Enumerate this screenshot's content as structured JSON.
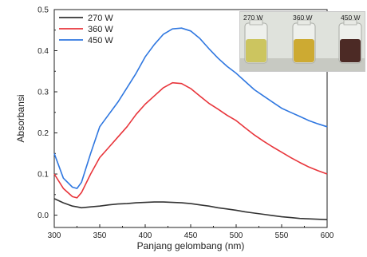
{
  "chart_data": {
    "type": "line",
    "title": "",
    "xlabel": "Panjang gelombang (nm)",
    "ylabel": "Absorbansi",
    "xlim": [
      300,
      600
    ],
    "ylim": [
      -0.03,
      0.5
    ],
    "x_ticks": [
      300,
      350,
      400,
      450,
      500,
      550,
      600
    ],
    "x_tick_labels": [
      "300",
      "350",
      "400",
      "450",
      "500",
      "550",
      "600"
    ],
    "y_ticks": [
      0.0,
      0.1,
      0.2,
      0.3,
      0.4,
      0.5
    ],
    "y_tick_labels": [
      "0.0",
      "0.1",
      "0.2",
      "0.3",
      "0.4",
      "0.5"
    ],
    "legend_position": "top-left",
    "grid": false,
    "x": [
      300,
      310,
      320,
      325,
      330,
      340,
      350,
      360,
      370,
      380,
      390,
      400,
      410,
      420,
      430,
      440,
      450,
      460,
      470,
      480,
      490,
      500,
      510,
      520,
      530,
      540,
      550,
      560,
      570,
      580,
      590,
      600
    ],
    "series": [
      {
        "name": "270 W",
        "color": "#333333",
        "values": [
          0.04,
          0.03,
          0.022,
          0.02,
          0.018,
          0.02,
          0.022,
          0.025,
          0.027,
          0.028,
          0.03,
          0.031,
          0.032,
          0.032,
          0.031,
          0.03,
          0.028,
          0.025,
          0.022,
          0.018,
          0.015,
          0.012,
          0.008,
          0.005,
          0.002,
          -0.001,
          -0.004,
          -0.006,
          -0.008,
          -0.009,
          -0.01,
          -0.011
        ]
      },
      {
        "name": "360 W",
        "color": "#e8353b",
        "values": [
          0.1,
          0.065,
          0.045,
          0.042,
          0.055,
          0.1,
          0.14,
          0.165,
          0.19,
          0.215,
          0.245,
          0.27,
          0.29,
          0.31,
          0.322,
          0.32,
          0.308,
          0.29,
          0.272,
          0.258,
          0.243,
          0.23,
          0.212,
          0.195,
          0.18,
          0.166,
          0.153,
          0.14,
          0.128,
          0.117,
          0.108,
          0.1
        ]
      },
      {
        "name": "450 W",
        "color": "#2f77e0",
        "values": [
          0.15,
          0.09,
          0.068,
          0.065,
          0.08,
          0.15,
          0.215,
          0.245,
          0.275,
          0.31,
          0.345,
          0.385,
          0.415,
          0.44,
          0.453,
          0.455,
          0.448,
          0.43,
          0.405,
          0.382,
          0.362,
          0.345,
          0.325,
          0.305,
          0.29,
          0.275,
          0.26,
          0.25,
          0.24,
          0.23,
          0.222,
          0.215
        ]
      }
    ]
  },
  "inset_photo": {
    "labels": [
      "270 W",
      "360 W",
      "450 W"
    ],
    "liquid_colors": [
      "#c8c050",
      "#c9a21e",
      "#3a1410"
    ]
  }
}
